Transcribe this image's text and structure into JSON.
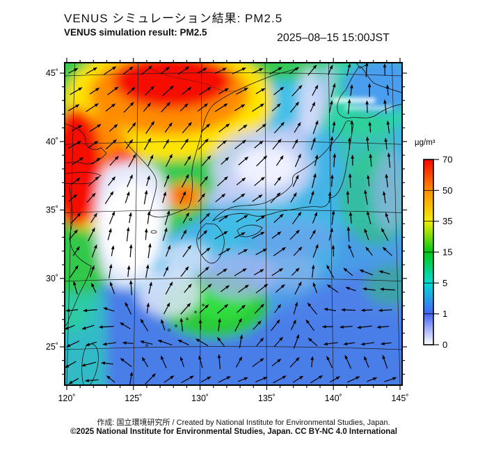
{
  "header": {
    "title_ja": "VENUS シミュレーション結果: PM2.5",
    "title_en": "VENUS simulation result: PM2.5",
    "datetime": "2025–08–15 15:00JST"
  },
  "footer": {
    "credit": "作成: 国立環境研究所 / Created by National Institute for Environmental Studies, Japan.",
    "license": "©2025 National Institute for Environmental Studies, Japan. CC BY-NC 4.0 International"
  },
  "chart_data": {
    "type": "heatmap",
    "subtype": "PM2.5 concentration map with wind vector overlay",
    "title": "VENUS シミュレーション結果: PM2.5",
    "title_en": "VENUS simulation result: PM2.5",
    "timestamp": "2025–08–15 15:00JST",
    "xlabel": "",
    "ylabel": "",
    "xlim": [
      119.8,
      145.2
    ],
    "ylim": [
      22.2,
      45.8
    ],
    "x_major_ticks": [
      120,
      125,
      130,
      135,
      140,
      145
    ],
    "x_tick_labels": [
      "120˚",
      "125˚",
      "130˚",
      "135˚",
      "140˚",
      "145˚"
    ],
    "y_major_ticks": [
      45,
      40,
      35,
      30,
      25
    ],
    "y_tick_labels": [
      "45˚",
      "40˚",
      "35˚",
      "30˚",
      "25˚"
    ],
    "minor_tick_step_deg": 1,
    "grid": true,
    "colorbar": {
      "unit": "µg/m³",
      "levels": [
        70,
        50,
        35,
        15,
        5,
        1,
        0
      ],
      "tick_labels": [
        "70",
        "50",
        "35",
        "15",
        "5",
        "1",
        "0"
      ],
      "colors_top_to_bottom": [
        "#fb0500",
        "#ff8c00",
        "#f2ee00",
        "#00c814",
        "#00dcd2",
        "#4663fa",
        "#ffffff"
      ],
      "scale_note": "non-linear scale, equal visual spacing between levels",
      "position": "right"
    },
    "features": [
      {
        "region": "Northeast China (121–129E, 42–46N)",
        "pm25_ugm3": "50–70+",
        "color": "red core with orange/yellow fringe"
      },
      {
        "region": "Bohai / North China coast (119–123E, 37–41N)",
        "pm25_ugm3": "50–70",
        "color": "red-orange"
      },
      {
        "region": "Seoul area plume (126–128E, 36.5–38N)",
        "pm25_ugm3": "35–60",
        "color": "orange with red spot"
      },
      {
        "region": "Yellow Sea (121–127E, 30–38N)",
        "pm25_ugm3": "0–1",
        "color": "white / pale lavender"
      },
      {
        "region": "Sea of Japan (131–139E, 36–45N)",
        "pm25_ugm3": "0–1",
        "color": "pale lavender streaks"
      },
      {
        "region": "East China coast (120–124E, 26–33N)",
        "pm25_ugm3": "15–35",
        "color": "green"
      },
      {
        "region": "Ryukyu Islands area (127–134E, 26–30N)",
        "pm25_ugm3": "15–25",
        "color": "green patch"
      },
      {
        "region": "Hokkaido / Sakhalin (139–146E, 42–46N)",
        "pm25_ugm3": "5–15",
        "color": "turquoise-green"
      },
      {
        "region": "Open Pacific and remaining ocean",
        "pm25_ugm3": "1–5",
        "color": "cyan-blue"
      }
    ],
    "wind": {
      "convention": "arrow directions in degrees, 0 = east, 90 = north; 10x10 grid spanning map extent, row 0 = north edge",
      "angles_deg": [
        [
          25,
          30,
          38,
          35,
          25,
          20,
          30,
          60,
          85,
          95
        ],
        [
          30,
          35,
          48,
          42,
          30,
          30,
          45,
          75,
          90,
          100
        ],
        [
          25,
          35,
          58,
          55,
          40,
          35,
          55,
          80,
          95,
          100
        ],
        [
          30,
          40,
          70,
          65,
          45,
          40,
          65,
          85,
          95,
          95
        ],
        [
          40,
          55,
          85,
          70,
          40,
          30,
          55,
          85,
          100,
          100
        ],
        [
          45,
          75,
          90,
          65,
          30,
          25,
          40,
          70,
          110,
          130
        ],
        [
          50,
          80,
          85,
          55,
          35,
          30,
          35,
          120,
          165,
          175
        ],
        [
          200,
          195,
          90,
          50,
          40,
          45,
          60,
          175,
          185,
          185
        ],
        [
          210,
          195,
          185,
          180,
          170,
          50,
          45,
          190,
          190,
          185
        ],
        [
          225,
          170,
          30,
          5,
          5,
          15,
          30,
          5,
          -5,
          -10
        ]
      ]
    }
  }
}
